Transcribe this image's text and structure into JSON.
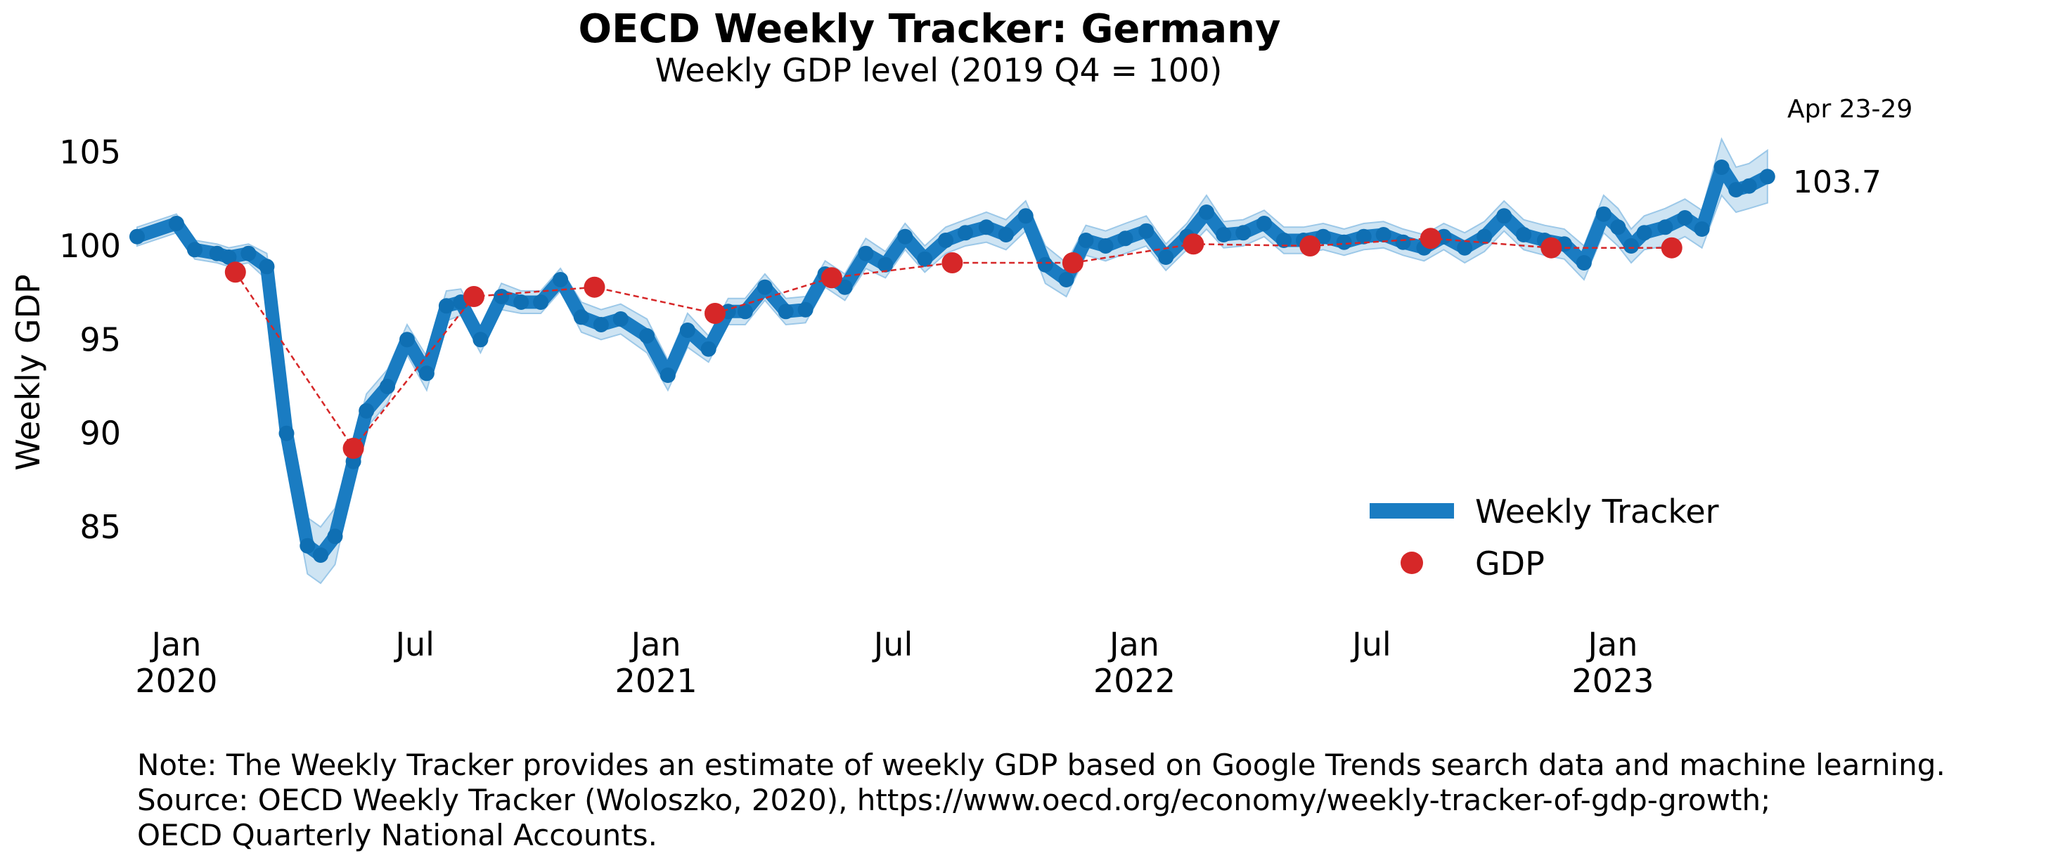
{
  "chart_data": {
    "type": "line",
    "title": "OECD Weekly Tracker: Germany",
    "subtitle": "Weekly GDP level (2019 Q4 = 100)",
    "ylabel": "Weekly GDP",
    "xlabel": "",
    "ylim": [
      80.5,
      107.5
    ],
    "xlim": [
      "2019-12-02",
      "2023-05-05"
    ],
    "grid": false,
    "legend_position": "lower-right",
    "y_ticks": [
      "85",
      "90",
      "95",
      "100",
      "105"
    ],
    "y_tick_values": [
      85,
      90,
      95,
      100,
      105
    ],
    "x_ticks": [
      {
        "date": "2020-01-01",
        "line1": "Jan",
        "line2": "2020"
      },
      {
        "date": "2020-07-01",
        "line1": "Jul",
        "line2": ""
      },
      {
        "date": "2021-01-01",
        "line1": "Jan",
        "line2": "2021"
      },
      {
        "date": "2021-07-01",
        "line1": "Jul",
        "line2": ""
      },
      {
        "date": "2022-01-01",
        "line1": "Jan",
        "line2": "2022"
      },
      {
        "date": "2022-07-01",
        "line1": "Jul",
        "line2": ""
      },
      {
        "date": "2023-01-01",
        "line1": "Jan",
        "line2": "2023"
      }
    ],
    "series": [
      {
        "name": "Weekly Tracker",
        "color": "#1a7cc2",
        "band_color": "#c5dff1",
        "x": [
          "2019-12-02",
          "2020-01-01",
          "2020-01-15",
          "2020-02-01",
          "2020-02-10",
          "2020-02-25",
          "2020-03-10",
          "2020-03-25",
          "2020-04-10",
          "2020-04-20",
          "2020-05-01",
          "2020-05-15",
          "2020-05-25",
          "2020-06-10",
          "2020-06-25",
          "2020-07-10",
          "2020-07-25",
          "2020-08-05",
          "2020-08-20",
          "2020-09-05",
          "2020-09-20",
          "2020-10-05",
          "2020-10-20",
          "2020-11-05",
          "2020-11-20",
          "2020-12-05",
          "2020-12-25",
          "2021-01-10",
          "2021-01-25",
          "2021-02-10",
          "2021-02-25",
          "2021-03-10",
          "2021-03-25",
          "2021-04-10",
          "2021-04-25",
          "2021-05-10",
          "2021-05-25",
          "2021-06-10",
          "2021-06-25",
          "2021-07-10",
          "2021-07-25",
          "2021-08-10",
          "2021-08-25",
          "2021-09-10",
          "2021-09-25",
          "2021-10-10",
          "2021-10-25",
          "2021-11-10",
          "2021-11-25",
          "2021-12-10",
          "2021-12-25",
          "2022-01-10",
          "2022-01-25",
          "2022-02-10",
          "2022-02-25",
          "2022-03-10",
          "2022-03-25",
          "2022-04-10",
          "2022-04-25",
          "2022-05-10",
          "2022-05-25",
          "2022-06-10",
          "2022-06-25",
          "2022-07-10",
          "2022-07-25",
          "2022-08-10",
          "2022-08-25",
          "2022-09-10",
          "2022-09-25",
          "2022-10-10",
          "2022-10-25",
          "2022-11-10",
          "2022-11-25",
          "2022-12-10",
          "2022-12-25",
          "2023-01-05",
          "2023-01-15",
          "2023-01-25",
          "2023-02-10",
          "2023-02-25",
          "2023-03-10",
          "2023-03-25",
          "2023-04-05",
          "2023-04-15",
          "2023-04-29"
        ],
        "values": [
          100.5,
          101.2,
          99.8,
          99.6,
          99.4,
          99.6,
          98.9,
          90.0,
          84.0,
          83.5,
          84.5,
          88.5,
          91.2,
          92.5,
          95.0,
          93.2,
          96.8,
          97.0,
          95.0,
          97.3,
          97.0,
          97.0,
          98.2,
          96.2,
          95.8,
          96.1,
          95.2,
          93.1,
          95.5,
          94.5,
          96.5,
          96.5,
          97.8,
          96.5,
          96.6,
          98.5,
          97.8,
          99.6,
          99.0,
          100.5,
          99.3,
          100.3,
          100.7,
          101.0,
          100.6,
          101.6,
          99.0,
          98.2,
          100.3,
          100.0,
          100.4,
          100.8,
          99.4,
          100.5,
          101.8,
          100.6,
          100.7,
          101.2,
          100.3,
          100.3,
          100.5,
          100.2,
          100.5,
          100.6,
          100.2,
          99.9,
          100.5,
          99.9,
          100.5,
          101.6,
          100.6,
          100.3,
          100.1,
          99.1,
          101.7,
          101.0,
          100.0,
          100.7,
          101.0,
          101.5,
          100.9,
          104.2,
          103.0,
          103.2,
          103.7
        ],
        "band_low": [
          100.0,
          100.7,
          99.3,
          99.1,
          98.9,
          99.1,
          98.2,
          88.5,
          82.5,
          82.0,
          83.0,
          87.5,
          90.3,
          91.6,
          94.2,
          92.3,
          96.0,
          96.3,
          94.3,
          96.6,
          96.4,
          96.4,
          97.6,
          95.4,
          95.0,
          95.3,
          94.3,
          92.3,
          94.6,
          93.8,
          95.8,
          95.8,
          97.1,
          95.8,
          95.9,
          97.8,
          97.1,
          98.8,
          98.3,
          99.8,
          98.6,
          99.6,
          100.0,
          100.2,
          99.8,
          100.8,
          98.0,
          97.3,
          99.5,
          99.2,
          99.6,
          100.0,
          98.7,
          99.8,
          100.9,
          99.9,
          100.0,
          100.5,
          99.6,
          99.6,
          99.8,
          99.5,
          99.8,
          99.9,
          99.5,
          99.2,
          99.8,
          99.1,
          99.7,
          100.8,
          99.8,
          99.5,
          99.3,
          98.2,
          100.7,
          100.0,
          99.1,
          99.8,
          100.0,
          100.5,
          99.9,
          102.7,
          101.8,
          102.0,
          102.3
        ],
        "band_high": [
          101.0,
          101.7,
          100.3,
          100.1,
          99.9,
          100.1,
          99.6,
          91.5,
          85.5,
          85.0,
          86.0,
          89.5,
          92.1,
          93.4,
          95.8,
          94.1,
          97.6,
          97.7,
          95.7,
          98.0,
          97.6,
          97.6,
          98.8,
          97.0,
          96.6,
          96.9,
          96.1,
          93.9,
          96.4,
          95.2,
          97.2,
          97.2,
          98.5,
          97.2,
          97.3,
          99.2,
          98.5,
          100.4,
          99.7,
          101.2,
          100.0,
          101.0,
          101.4,
          101.8,
          101.4,
          102.4,
          100.0,
          99.1,
          101.1,
          100.8,
          101.2,
          101.6,
          100.1,
          101.2,
          102.7,
          101.3,
          101.4,
          101.9,
          101.0,
          101.0,
          101.2,
          100.9,
          101.2,
          101.3,
          100.9,
          100.6,
          101.2,
          100.7,
          101.3,
          102.4,
          101.4,
          101.1,
          100.9,
          100.0,
          102.7,
          102.0,
          100.9,
          101.6,
          102.0,
          102.5,
          101.9,
          105.7,
          104.2,
          104.4,
          105.1
        ]
      },
      {
        "name": "GDP",
        "color": "#d62728",
        "x": [
          "2020-02-15",
          "2020-05-15",
          "2020-08-15",
          "2020-11-15",
          "2021-02-15",
          "2021-05-15",
          "2021-08-15",
          "2021-11-15",
          "2022-02-15",
          "2022-05-15",
          "2022-08-15",
          "2022-11-15",
          "2023-02-15"
        ],
        "values": [
          98.6,
          89.2,
          97.3,
          97.8,
          96.4,
          98.3,
          99.1,
          99.1,
          100.1,
          100.0,
          100.4,
          99.9,
          99.9
        ]
      }
    ],
    "annotation_date": "Apr 23-29",
    "annotation_value": "103.7"
  },
  "note": {
    "line1": "Note: The Weekly Tracker provides an estimate of weekly GDP based on Google Trends search data and machine learning.",
    "line2": "Source: OECD Weekly Tracker (Woloszko, 2020), https://www.oecd.org/economy/weekly-tracker-of-gdp-growth;",
    "line3": "OECD Quarterly National Accounts."
  }
}
